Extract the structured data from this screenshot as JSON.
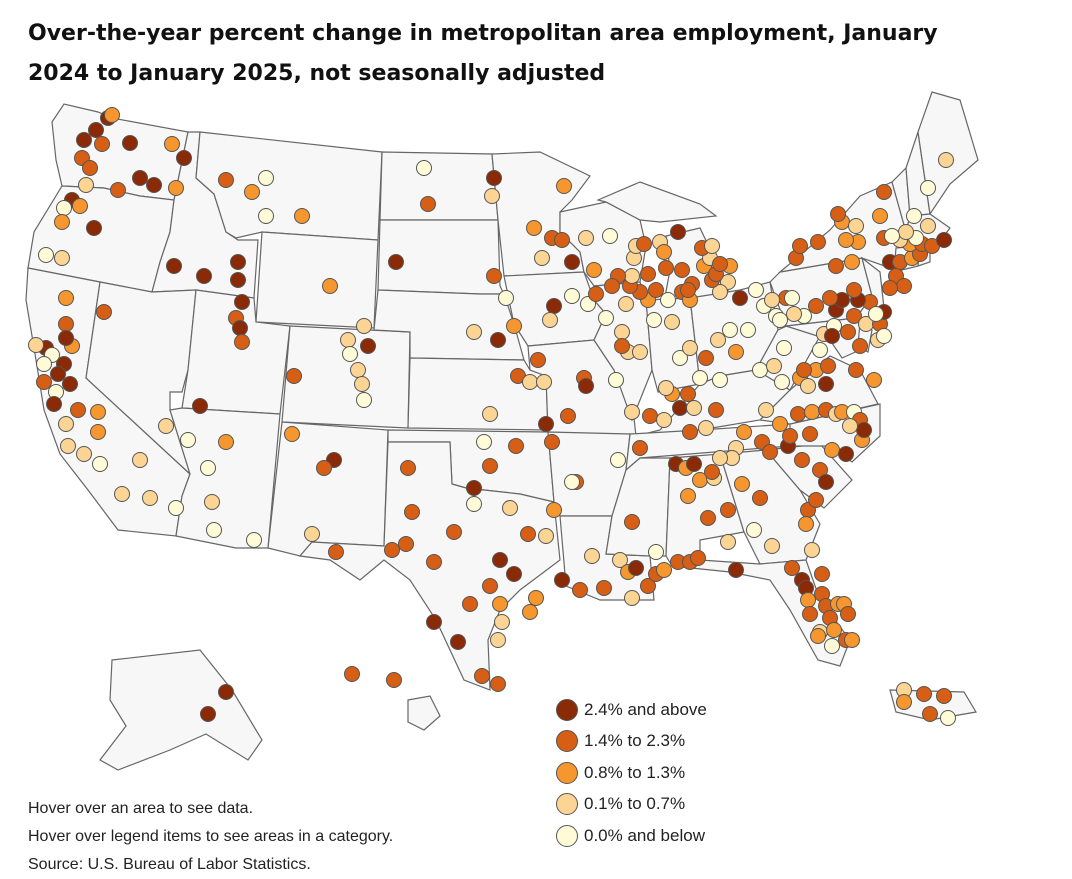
{
  "title": "Over-the-year percent change in metropolitan area employment, January 2024 to January 2025, not seasonally adjusted",
  "legend": {
    "items": [
      {
        "label": "2.4% and above",
        "color": "#8b2a07"
      },
      {
        "label": "1.4% to 2.3%",
        "color": "#d65f15"
      },
      {
        "label": "0.8% to 1.3%",
        "color": "#f5962e"
      },
      {
        "label": "0.1% to 0.7%",
        "color": "#fcd594"
      },
      {
        "label": "0.0% and below",
        "color": "#fefbd6"
      }
    ]
  },
  "notes": {
    "hover_area": "Hover over an area to see data.",
    "hover_legend": "Hover over legend items to see areas in a category.",
    "source": "Source: U.S. Bureau of Labor Statistics."
  }
}
